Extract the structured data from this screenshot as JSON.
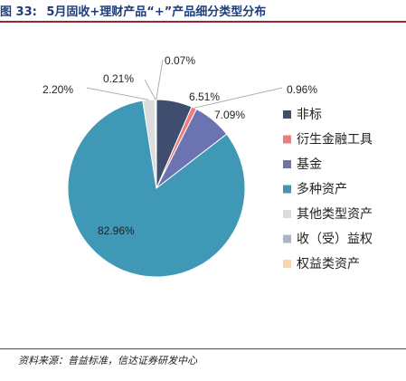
{
  "figure": {
    "number_label": "图 33:",
    "title": "5月固收+理财产品“+”产品细分类型分布"
  },
  "source": "资料来源：普益标准，信达证券研发中心",
  "chart_data": {
    "type": "pie",
    "title": "",
    "legend_placement": "right",
    "series": [
      {
        "name": "非标",
        "value": 6.51,
        "label": "6.51%",
        "color": "#3f4d6e"
      },
      {
        "name": "衍生金融工具",
        "value": 0.96,
        "label": "0.96%",
        "color": "#f07b7b"
      },
      {
        "name": "基金",
        "value": 7.09,
        "label": "7.09%",
        "color": "#6b74b0"
      },
      {
        "name": "多种资产",
        "value": 82.96,
        "label": "82.96%",
        "color": "#3f98b5"
      },
      {
        "name": "其他类型资产",
        "value": 2.2,
        "label": "2.20%",
        "color": "#dcdcdc"
      },
      {
        "name": "收（受）益权",
        "value": 0.21,
        "label": "0.21%",
        "color": "#aab7c9"
      },
      {
        "name": "权益类资产",
        "value": 0.07,
        "label": "0.07%",
        "color": "#f7d9a8"
      }
    ]
  }
}
